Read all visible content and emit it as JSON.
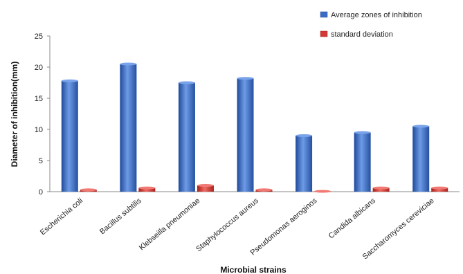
{
  "chart_data": {
    "type": "bar",
    "title": "",
    "xlabel": "Microbial strains",
    "ylabel": "Diameter of inhibition(mm)",
    "ylim": [
      0,
      25
    ],
    "yticks": [
      0,
      5,
      10,
      15,
      20,
      25
    ],
    "grid": false,
    "legend": "top-right",
    "categories": [
      "Escherichia coli",
      "Bacillus subtilis",
      "Klebseilla pneumoniae",
      "Staphylococcus aureus",
      "Pseudomonas aeroginos",
      "Candida albicans",
      "Saccharomyces cereviciae"
    ],
    "series": [
      {
        "name": "Average zones of inhibition",
        "color": "#3b6bc4",
        "values": [
          17.8,
          20.5,
          17.5,
          18.2,
          9.0,
          9.5,
          10.5
        ]
      },
      {
        "name": "standard deviation",
        "color": "#d23a35",
        "values": [
          0.3,
          0.6,
          1.0,
          0.3,
          0.05,
          0.6,
          0.6
        ]
      }
    ]
  }
}
